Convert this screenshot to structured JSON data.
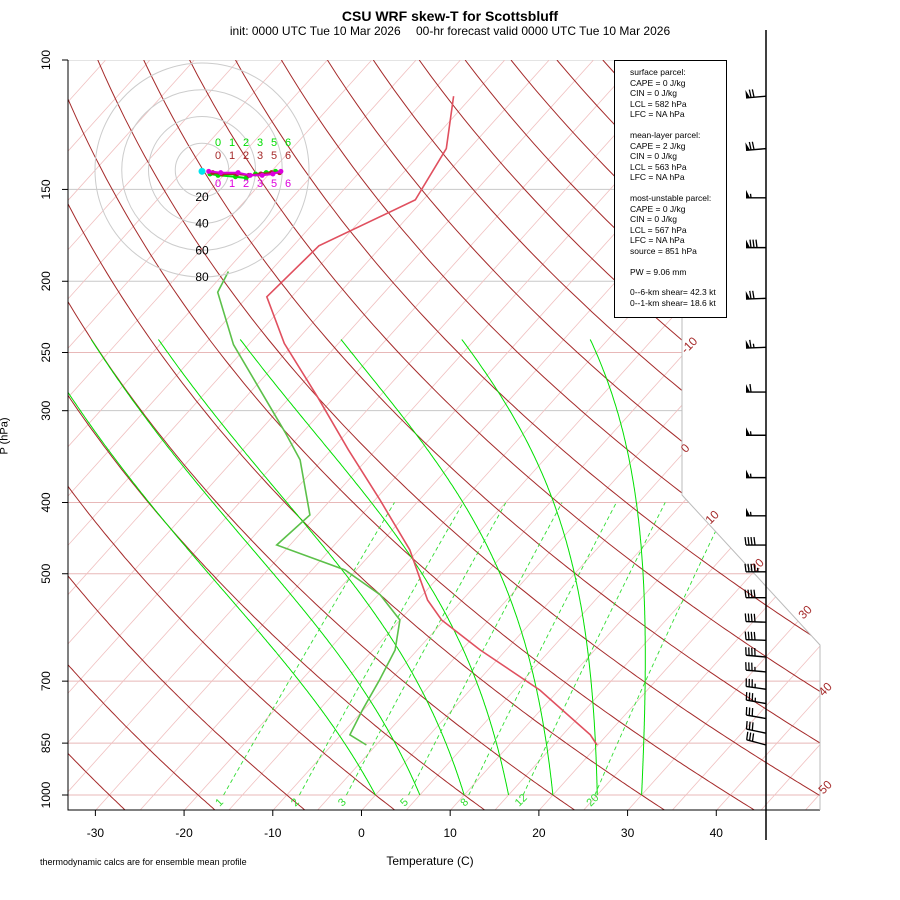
{
  "title": "CSU WRF skew-T for Scottsbluff",
  "subtitle": {
    "init": "init: 0000 UTC Tue 10 Mar 2026",
    "valid": "00-hr forecast valid 0000 UTC Tue 10 Mar 2026"
  },
  "footnote": "thermodynamic calcs are for ensemble mean profile",
  "stats": {
    "surface": [
      "surface parcel:",
      "CAPE = 0 J/kg",
      "CIN = 0 J/kg",
      "LCL = 582 hPa",
      "LFC = NA hPa"
    ],
    "mean_layer": [
      "mean-layer parcel:",
      "CAPE = 2 J/kg",
      "CIN = 0 J/kg",
      "LCL = 563 hPa",
      "LFC = NA hPa"
    ],
    "most_unstable": [
      "most-unstable parcel:",
      "CAPE = 0 J/kg",
      "CIN = 0 J/kg",
      "LCL = 567 hPa",
      "LFC = NA hPa",
      "source = 851 hPa"
    ],
    "pw": "PW =  9.06 mm",
    "shear": [
      "0--6-km shear= 42.3 kt",
      "0--1-km shear= 18.6 kt"
    ]
  },
  "chart_data": {
    "type": "skew-T",
    "xlabel": "Temperature (C)",
    "ylabel": "P (hPa)",
    "x_ticks": [
      -30,
      -20,
      -10,
      0,
      10,
      20,
      30,
      40
    ],
    "y_ticks": [
      100,
      150,
      200,
      250,
      300,
      400,
      500,
      700,
      850,
      1000
    ],
    "y_scale": "log",
    "ylim": [
      1050,
      100
    ],
    "isotherm_labels": [
      "-10",
      "0",
      "10",
      "20",
      "30",
      "40",
      "50"
    ],
    "mixing_ratio_labels": [
      "1",
      "2",
      "3",
      "5",
      "8",
      "12",
      "20"
    ],
    "colors": {
      "temperature": "#e0505f",
      "dewpoint": "#5cc04a",
      "dry_adiabat": "#a52a2a",
      "moist_adiabat": "#00e000",
      "mixing_ratio": "#33dd33",
      "isotherm": "#f0c0c0",
      "isobar": "#e8b8b8"
    },
    "temperature": {
      "p": [
        112,
        132,
        155,
        179,
        210,
        243,
        288,
        339,
        397,
        464,
        543,
        578,
        635,
        720,
        828,
        855
      ],
      "t": [
        -62.1,
        -57.6,
        -55.9,
        -62.1,
        -62.8,
        -56.1,
        -46.8,
        -38.1,
        -29.4,
        -21.0,
        -13.9,
        -10.3,
        -2.9,
        7.9,
        18.1,
        19.9
      ]
    },
    "dewpoint": {
      "p": [
        194,
        207,
        244,
        321,
        350,
        416,
        457,
        494,
        534,
        578,
        635,
        698,
        766,
        828,
        855
      ],
      "t": [
        -69.7,
        -68.8,
        -61.7,
        -47.0,
        -42.5,
        -35.8,
        -36.5,
        -26.3,
        -19.8,
        -15.0,
        -12.5,
        -11.2,
        -10.1,
        -9.0,
        -6.1
      ]
    },
    "wind": {
      "p": [
        112,
        132,
        154,
        180,
        211,
        246,
        283,
        324,
        370,
        417,
        457,
        497,
        539,
        582,
        616,
        649,
        680,
        718,
        751,
        787,
        824,
        855
      ],
      "speed_kt": [
        70,
        70,
        55,
        80,
        70,
        65,
        60,
        55,
        55,
        55,
        40,
        45,
        40,
        40,
        40,
        40,
        35,
        35,
        35,
        30,
        30,
        30
      ],
      "direction_deg": [
        265,
        265,
        270,
        270,
        268,
        268,
        270,
        270,
        270,
        270,
        270,
        270,
        270,
        272,
        272,
        275,
        275,
        278,
        280,
        280,
        282,
        285
      ]
    },
    "hodograph": {
      "ring_labels": [
        "20",
        "40",
        "60",
        "80"
      ],
      "storm_motion": {
        "u": 0,
        "v": -1
      },
      "series": [
        {
          "color": "#00dd00",
          "u": [
            6,
            12,
            25,
            33,
            40,
            48,
            55
          ],
          "v": [
            -3,
            -4,
            -5,
            -6,
            -3,
            -2,
            -1
          ],
          "labels": [
            "0",
            "1",
            "2",
            "3",
            "5",
            "6"
          ]
        },
        {
          "color": "#a52a2a",
          "u": [
            8,
            15,
            26,
            35,
            44,
            52,
            58
          ],
          "v": [
            -2,
            -3,
            -3,
            -4,
            -3,
            -2,
            -2
          ],
          "labels": [
            "0",
            "1",
            "2",
            "3",
            "5",
            "6"
          ]
        },
        {
          "color": "#dd00dd",
          "u": [
            5,
            14,
            27,
            36,
            45,
            53,
            59
          ],
          "v": [
            -1,
            -2,
            -2,
            -4,
            -4,
            -3,
            -1
          ],
          "labels": [
            "0",
            "1",
            "2",
            "3",
            "5",
            "6"
          ]
        }
      ]
    }
  }
}
